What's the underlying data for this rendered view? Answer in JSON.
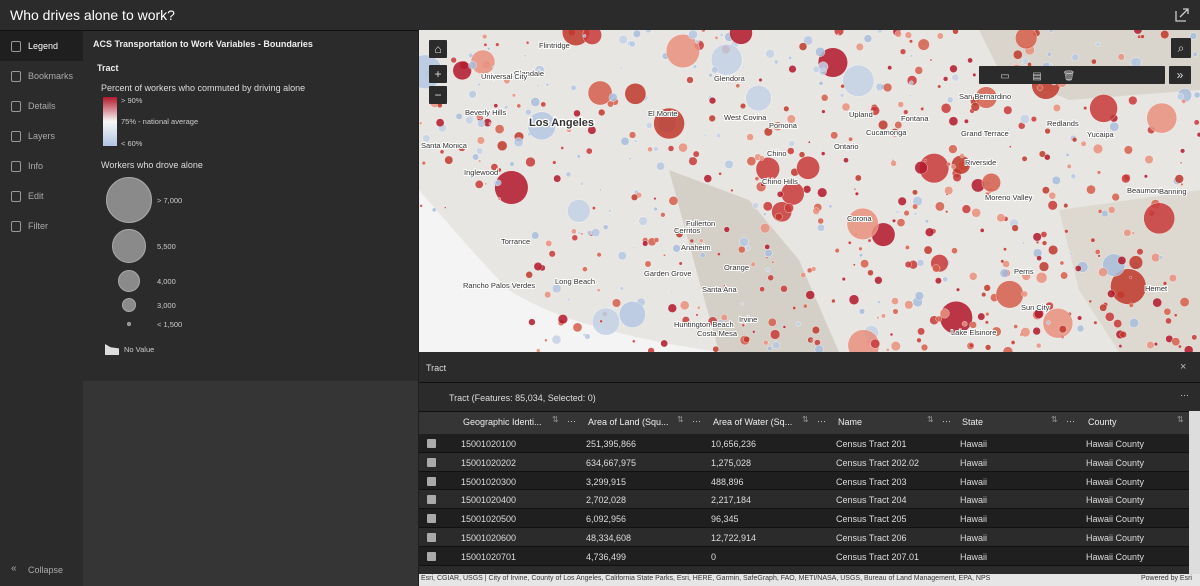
{
  "header": {
    "title": "Who drives alone to work?"
  },
  "sidebar": {
    "items": [
      "Legend",
      "Bookmarks",
      "Details",
      "Layers",
      "Info",
      "Edit",
      "Filter"
    ],
    "collapse": "Collapse"
  },
  "legend": {
    "layer": "ACS Transportation to Work Variables - Boundaries",
    "group": "Tract",
    "color_title": "Percent of workers who commuted by driving alone",
    "color_labels": [
      "> 90%",
      "75% - national average",
      "< 60%"
    ],
    "size_title": "Workers who drove alone",
    "size_labels": [
      "> 7,000",
      "5,500",
      "4,000",
      "3,000",
      "< 1,500"
    ],
    "no_value": "No Value"
  },
  "map": {
    "places": [
      "Flintridge",
      "Glendale",
      "Universal City",
      "Glendora",
      "Beverly Hills",
      "Los Angeles",
      "El Monte",
      "West Covina",
      "Pomona",
      "Upland",
      "Cucamonga",
      "Fontana",
      "San Bernardino",
      "Redlands",
      "Santa Monica",
      "Inglewood",
      "Chino",
      "Ontario",
      "Chino Hills",
      "Grand Terrace",
      "Riverside",
      "Yucaipa",
      "Moreno Valley",
      "Beaumont",
      "Banning",
      "Cerritos",
      "Fullerton",
      "Corona",
      "Torrance",
      "Anaheim",
      "Long Beach",
      "Garden Grove",
      "Orange",
      "Santa Ana",
      "Perris",
      "Rancho Palos Verdes",
      "Hemet",
      "Huntington Beach",
      "Irvine",
      "Costa Mesa",
      "Sun City",
      "Lake Elsinore"
    ],
    "attribution": "Esri, CGIAR, USGS | City of Irvine, County of Los Angeles, California State Parks, Esri, HERE, Garmin, SafeGraph, FAO, METI/NASA, USGS, Bureau of Land Management, EPA, NPS",
    "powered_by": "Powered by Esri"
  },
  "table": {
    "panel_title": "Tract",
    "summary": "Tract (Features: 85,034, Selected: 0)",
    "columns": [
      "Geographic Identi...",
      "Area of Land (Squ...",
      "Area of Water (Sq...",
      "Name",
      "State",
      "County"
    ],
    "rows": [
      [
        "15001020100",
        "251,395,866",
        "10,656,236",
        "Census Tract 201",
        "Hawaii",
        "Hawaii County"
      ],
      [
        "15001020202",
        "634,667,975",
        "1,275,028",
        "Census Tract 202.02",
        "Hawaii",
        "Hawaii County"
      ],
      [
        "15001020300",
        "3,299,915",
        "488,896",
        "Census Tract 203",
        "Hawaii",
        "Hawaii County"
      ],
      [
        "15001020400",
        "2,702,028",
        "2,217,184",
        "Census Tract 204",
        "Hawaii",
        "Hawaii County"
      ],
      [
        "15001020500",
        "6,092,956",
        "96,345",
        "Census Tract 205",
        "Hawaii",
        "Hawaii County"
      ],
      [
        "15001020600",
        "48,334,608",
        "12,722,914",
        "Census Tract 206",
        "Hawaii",
        "Hawaii County"
      ],
      [
        "15001020701",
        "4,736,499",
        "0",
        "Census Tract 207.01",
        "Hawaii",
        "Hawaii County"
      ]
    ]
  }
}
